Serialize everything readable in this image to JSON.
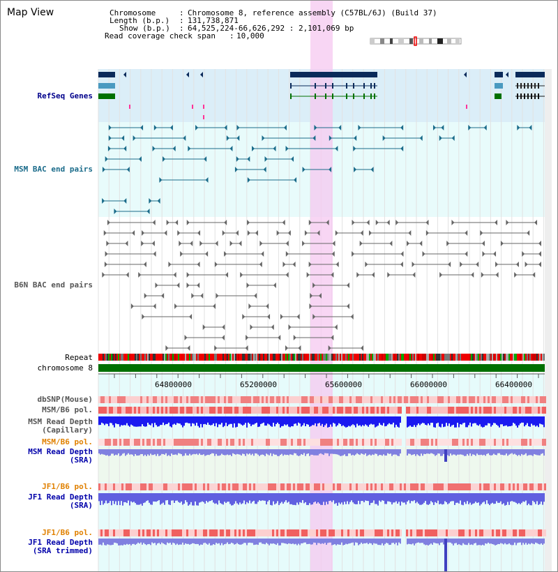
{
  "header": {
    "title": "Map View",
    "chromosome_key": "Chromosome",
    "chromosome_val": "Chromosome 8, reference assembly (C57BL/6J) (Build 37)",
    "length_key": "Length (b.p.)",
    "length_val": "131,738,871",
    "show_key": "Show (b.p.)",
    "show_val": "64,525,224-66,626,292 : 2,101,069 bp",
    "read_key": "Read coverage check span",
    "read_val": "10,000"
  },
  "tracks": {
    "refseq": "RefSeq Genes",
    "msm_bac": "MSM BAC end pairs",
    "b6n_bac": "B6N BAC end pairs",
    "repeat": "Repeat",
    "chromosome": "chromosome 8",
    "dbsnp": "dbSNP(Mouse)",
    "msm_b6_pol_1": "MSM/B6 pol.",
    "msm_read_depth_cap": "MSM Read Depth\n(Capillary)",
    "msm_b6_pol_2": "MSM/B6 pol.",
    "msm_read_depth_sra": "MSM Read Depth\n(SRA)",
    "jf1_b6_pol_1": "JF1/B6 pol.",
    "jf1_read_depth_sra": "JF1 Read Depth\n(SRA)",
    "jf1_b6_pol_2": "JF1/B6 pol.",
    "jf1_read_depth_trim": "JF1 Read Depth\n(SRA trimmed)"
  },
  "ruler": {
    "labels": [
      "64800000",
      "65200000",
      "65600000",
      "66000000",
      "66400000"
    ]
  },
  "colors": {
    "refseq_label": "#00008b",
    "msm_bac_label": "#1a6b8a",
    "b6n_bac_label": "#555555",
    "pol_label_orange": "#e08000",
    "depth_label_blue": "#0000aa",
    "highlight": "#f5c8f0",
    "chromosome_bar": "#007000"
  }
}
